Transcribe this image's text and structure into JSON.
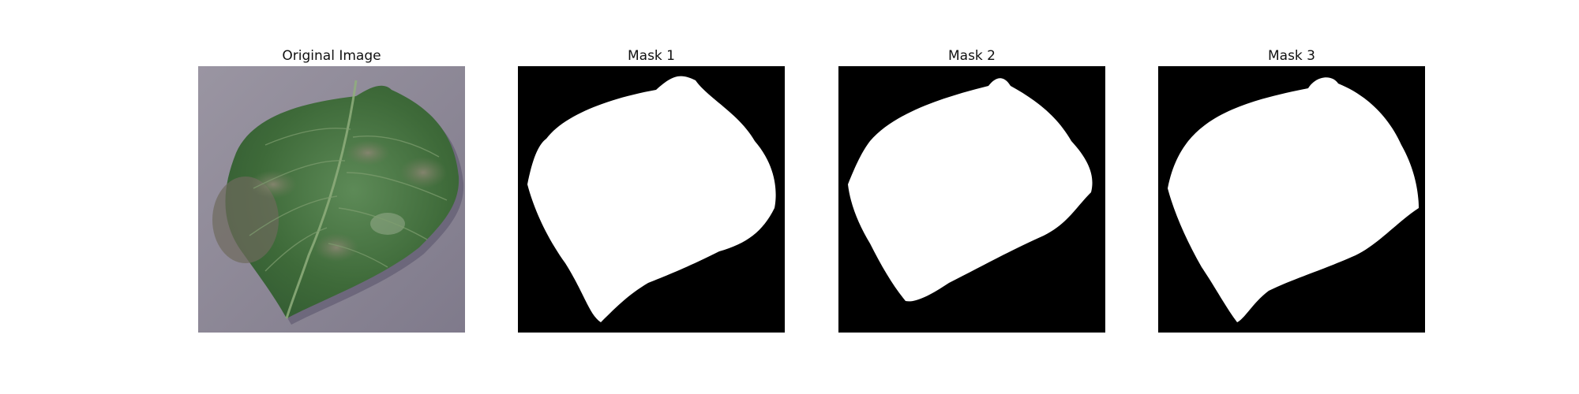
{
  "panels": [
    {
      "title": "Original Image"
    },
    {
      "title": "Mask 1"
    },
    {
      "title": "Mask 2"
    },
    {
      "title": "Mask 3"
    }
  ],
  "colors": {
    "background_surface": "#8f8a98",
    "leaf": "#3f6b3a",
    "mask_background": "#000000",
    "mask_foreground": "#ffffff"
  }
}
